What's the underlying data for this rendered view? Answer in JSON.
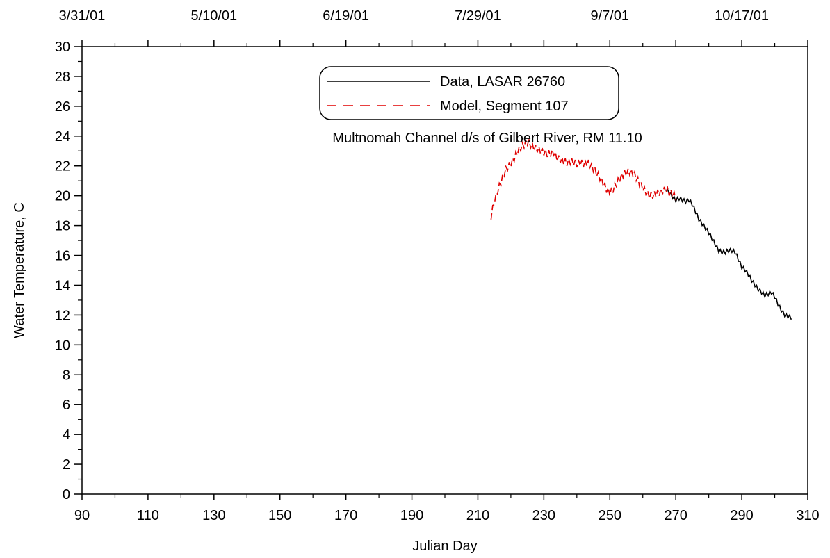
{
  "chart_data": {
    "type": "line",
    "xlabel": "Julian Day",
    "ylabel": "Water Temperature, C",
    "xlim": [
      90,
      310
    ],
    "ylim": [
      0,
      30
    ],
    "x_ticks": [
      90,
      110,
      130,
      150,
      170,
      190,
      210,
      230,
      250,
      270,
      290,
      310
    ],
    "y_ticks": [
      0,
      2,
      4,
      6,
      8,
      10,
      12,
      14,
      16,
      18,
      20,
      22,
      24,
      26,
      28,
      30
    ],
    "top_axis_labels": [
      {
        "x": 90,
        "label": "3/31/01"
      },
      {
        "x": 130,
        "label": "5/10/01"
      },
      {
        "x": 170,
        "label": "6/19/01"
      },
      {
        "x": 210,
        "label": "7/29/01"
      },
      {
        "x": 250,
        "label": "9/7/01"
      },
      {
        "x": 290,
        "label": "10/17/01"
      }
    ],
    "annotation": "Multnomah Channel d/s of Gilbert River, RM 11.10",
    "legend": {
      "placement": "top-center",
      "entries": [
        "Data, LASAR 26760",
        "Model, Segment 107"
      ]
    },
    "series": [
      {
        "name": "Data, LASAR 26760",
        "color": "#000000",
        "style": "solid",
        "x": [
          267,
          268,
          269,
          270,
          271,
          272,
          273,
          274,
          275,
          276,
          277,
          278,
          279,
          280,
          281,
          282,
          283,
          284,
          285,
          286,
          287,
          288,
          289,
          290,
          291,
          292,
          293,
          294,
          295,
          296,
          297,
          298,
          299,
          300,
          301,
          302,
          303,
          304,
          305
        ],
        "y": [
          20.3,
          20.1,
          19.8,
          19.6,
          19.7,
          19.6,
          19.5,
          19.6,
          19.3,
          18.8,
          18.3,
          18.0,
          17.7,
          17.4,
          17.0,
          16.6,
          16.2,
          16.1,
          16.1,
          16.2,
          16.2,
          16.1,
          15.6,
          15.1,
          14.9,
          14.6,
          14.2,
          13.9,
          13.6,
          13.4,
          13.2,
          13.3,
          13.4,
          13.1,
          12.6,
          12.2,
          11.9,
          11.8,
          11.7
        ]
      },
      {
        "name": "Model, Segment 107",
        "color": "#e00000",
        "style": "dashed",
        "x": [
          214,
          215,
          216,
          217,
          218,
          219,
          220,
          221,
          222,
          223,
          224,
          225,
          226,
          227,
          228,
          229,
          230,
          231,
          232,
          233,
          234,
          235,
          236,
          237,
          238,
          239,
          240,
          241,
          242,
          243,
          244,
          245,
          246,
          247,
          248,
          249,
          250,
          251,
          252,
          253,
          254,
          255,
          256,
          257,
          258,
          259,
          260,
          261,
          262,
          263,
          264,
          265,
          266,
          267,
          268,
          269,
          270
        ],
        "y": [
          18.4,
          19.4,
          20.1,
          20.7,
          21.3,
          21.7,
          21.9,
          22.3,
          22.7,
          23.0,
          23.2,
          23.4,
          23.2,
          23.0,
          22.9,
          22.8,
          22.7,
          22.6,
          22.6,
          22.7,
          22.3,
          22.2,
          22.1,
          22.0,
          22.1,
          22.0,
          21.9,
          22.0,
          21.9,
          22.0,
          21.9,
          21.6,
          21.3,
          21.0,
          20.6,
          20.2,
          20.0,
          20.2,
          20.6,
          20.9,
          21.2,
          21.3,
          21.4,
          21.3,
          21.0,
          20.6,
          20.3,
          20.0,
          19.8,
          19.8,
          19.9,
          20.0,
          20.1,
          20.2,
          20.0,
          19.9,
          19.7
        ]
      }
    ]
  }
}
